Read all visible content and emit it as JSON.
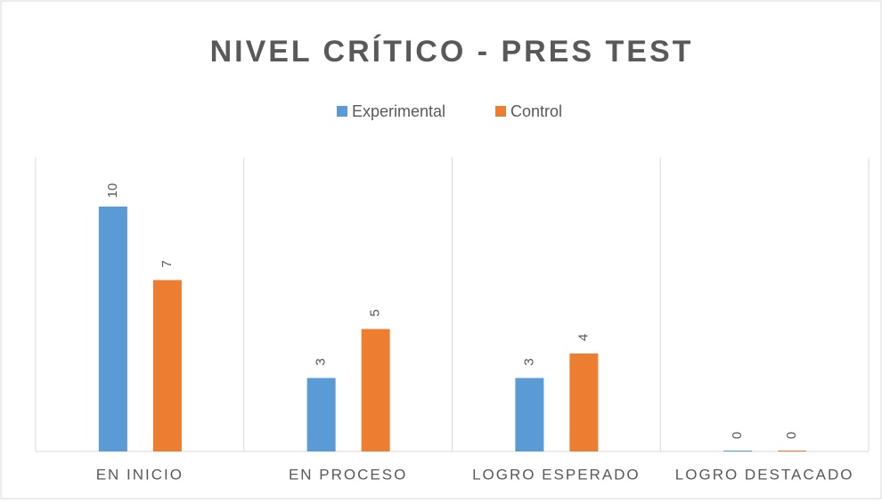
{
  "chart_data": {
    "type": "bar",
    "title": "NIVEL CRÍTICO  - PRES TEST",
    "categories": [
      "EN INICIO",
      "EN PROCESO",
      "LOGRO ESPERADO",
      "LOGRO DESTACADO"
    ],
    "series": [
      {
        "name": "Experimental",
        "color": "#5b9bd5",
        "values": [
          10,
          3,
          3,
          0
        ]
      },
      {
        "name": "Control",
        "color": "#ed7d31",
        "values": [
          7,
          5,
          4,
          0
        ]
      }
    ],
    "ylim": [
      0,
      12
    ],
    "legend": "top"
  }
}
